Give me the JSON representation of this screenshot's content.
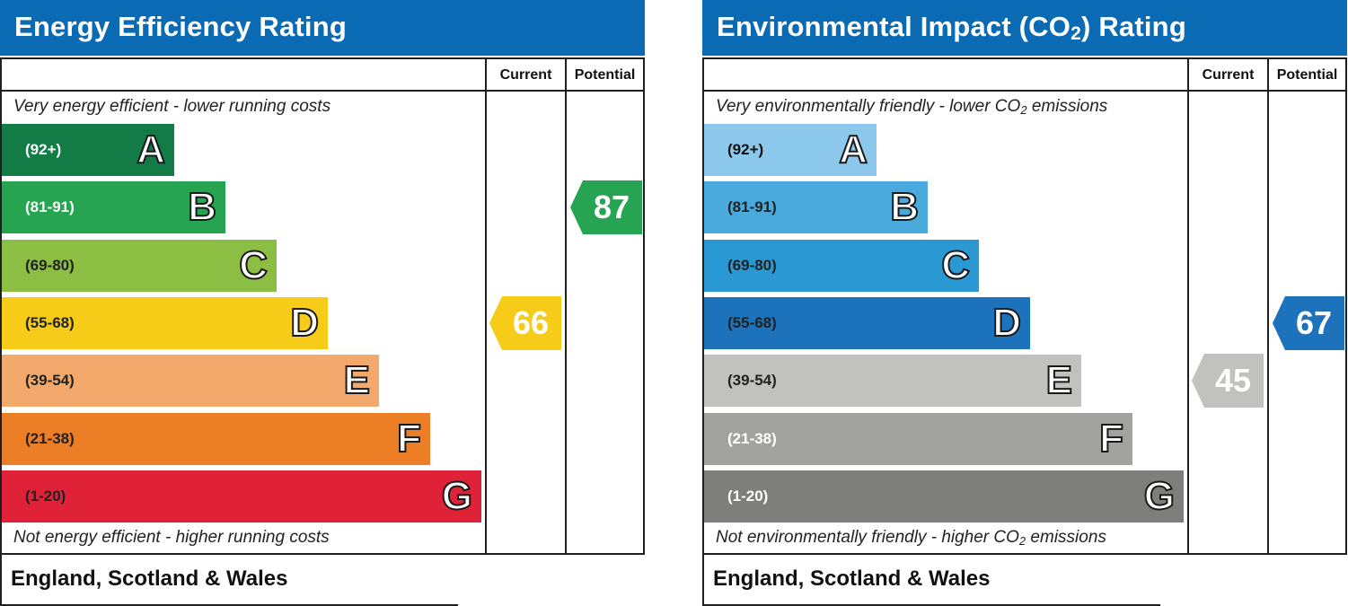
{
  "energy": {
    "title": "Energy Efficiency Rating",
    "col_current": "Current",
    "col_potential": "Potential",
    "top_caption": "Very energy efficient - lower running costs",
    "bottom_caption": "Not energy efficient - higher running costs",
    "footer": "England, Scotland & Wales",
    "colors": {
      "title_bar": "#0a6ab4",
      "A": "#137b45",
      "B": "#26a451",
      "C": "#8dbe44",
      "D": "#f6cc19",
      "E": "#f2a96b",
      "F": "#ec7e26",
      "G": "#e02239"
    }
  },
  "co2": {
    "title_prefix": "Environmental Impact (CO",
    "title_sub": "2",
    "title_suffix": ") Rating",
    "col_current": "Current",
    "col_potential": "Potential",
    "top_caption_prefix": "Very environmentally friendly - lower CO",
    "top_caption_sub": "2",
    "top_caption_suffix": " emissions",
    "bottom_caption_prefix": "Not environmentally friendly - higher CO",
    "bottom_caption_sub": "2",
    "bottom_caption_suffix": " emissions",
    "footer": "England, Scotland & Wales",
    "colors": {
      "title_bar": "#0a6ab4",
      "A": "#8cc8ec",
      "B": "#4aa9dd",
      "C": "#2a98d2",
      "D": "#1c73bb",
      "E": "#c1c1bf",
      "F": "#a2a2a0",
      "G": "#7e7e7c"
    }
  },
  "chart_data": [
    {
      "type": "bar",
      "title": "Energy Efficiency Rating",
      "bands": [
        {
          "letter": "A",
          "range": "(92+)"
        },
        {
          "letter": "B",
          "range": "(81-91)"
        },
        {
          "letter": "C",
          "range": "(69-80)"
        },
        {
          "letter": "D",
          "range": "(55-68)"
        },
        {
          "letter": "E",
          "range": "(39-54)"
        },
        {
          "letter": "F",
          "range": "(21-38)"
        },
        {
          "letter": "G",
          "range": "(1-20)"
        }
      ],
      "current": {
        "value": 66,
        "band": "D",
        "color": "#f6cc19"
      },
      "potential": {
        "value": 87,
        "band": "B",
        "color": "#26a451"
      }
    },
    {
      "type": "bar",
      "title": "Environmental Impact (CO2) Rating",
      "bands": [
        {
          "letter": "A",
          "range": "(92+)"
        },
        {
          "letter": "B",
          "range": "(81-91)"
        },
        {
          "letter": "C",
          "range": "(69-80)"
        },
        {
          "letter": "D",
          "range": "(55-68)"
        },
        {
          "letter": "E",
          "range": "(39-54)"
        },
        {
          "letter": "F",
          "range": "(21-38)"
        },
        {
          "letter": "G",
          "range": "(1-20)"
        }
      ],
      "current": {
        "value": 45,
        "band": "E",
        "color": "#c1c1bf"
      },
      "potential": {
        "value": 67,
        "band": "D",
        "color": "#1c73bb"
      }
    }
  ]
}
